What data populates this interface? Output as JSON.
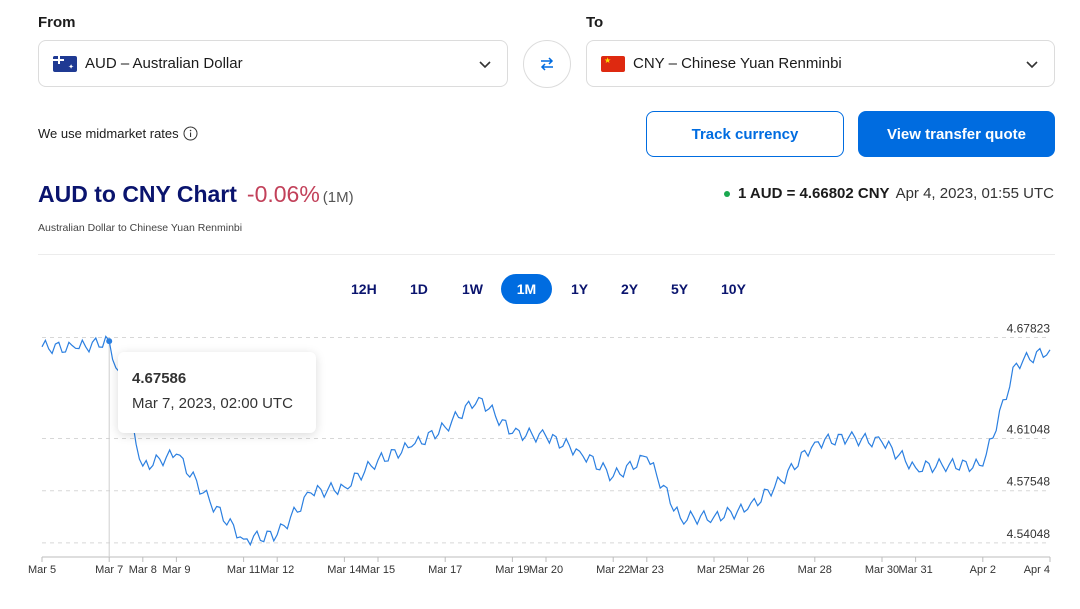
{
  "converter": {
    "from_label": "From",
    "to_label": "To",
    "from_currency": "AUD – Australian Dollar",
    "to_currency": "CNY – Chinese Yuan Renminbi",
    "from_flag": "australia-flag-icon",
    "to_flag": "china-flag-icon"
  },
  "note": "We use midmarket rates",
  "buttons": {
    "track": "Track currency",
    "quote": "View transfer quote"
  },
  "header": {
    "title": "AUD to CNY Chart",
    "change": "-0.06%",
    "period": "(1M)",
    "subtitle": "Australian Dollar to Chinese Yuan Renminbi",
    "rate": "1 AUD = 4.66802 CNY",
    "timestamp": "Apr 4, 2023, 01:55 UTC"
  },
  "tabs": [
    {
      "label": "12H",
      "active": false
    },
    {
      "label": "1D",
      "active": false
    },
    {
      "label": "1W",
      "active": false
    },
    {
      "label": "1M",
      "active": true
    },
    {
      "label": "1Y",
      "active": false
    },
    {
      "label": "2Y",
      "active": false
    },
    {
      "label": "5Y",
      "active": false
    },
    {
      "label": "10Y",
      "active": false
    }
  ],
  "tooltip": {
    "value": "4.67586",
    "date": "Mar 7, 2023, 02:00 UTC"
  },
  "colors": {
    "brand": "#006ce0",
    "title": "#0a146e",
    "negative": "#c2415a",
    "line": "#2b7fe0",
    "live_dot": "#1aa84f"
  },
  "chart_data": {
    "type": "line",
    "title": "AUD to CNY Chart",
    "y_ticks": [
      4.67823,
      4.61048,
      4.57548,
      4.54048
    ],
    "ylim": [
      4.531,
      4.69
    ],
    "x_labels": [
      "Mar 5",
      "Mar 7",
      "Mar 8",
      "Mar 9",
      "Mar 11",
      "Mar 12",
      "Mar 14",
      "Mar 15",
      "Mar 17",
      "Mar 19",
      "Mar 20",
      "Mar 22",
      "Mar 23",
      "Mar 25",
      "Mar 26",
      "Mar 28",
      "Mar 30",
      "Mar 31",
      "Apr 2",
      "Apr 4"
    ],
    "x": [
      "Mar 5",
      "Mar 6",
      "Mar 7",
      "Mar 8",
      "Mar 9",
      "Mar 10",
      "Mar 11",
      "Mar 12",
      "Mar 13",
      "Mar 14",
      "Mar 15",
      "Mar 16",
      "Mar 17",
      "Mar 18",
      "Mar 19",
      "Mar 20",
      "Mar 21",
      "Mar 22",
      "Mar 23",
      "Mar 24",
      "Mar 25",
      "Mar 26",
      "Mar 27",
      "Mar 28",
      "Mar 29",
      "Mar 30",
      "Mar 31",
      "Apr 1",
      "Apr 2",
      "Apr 3",
      "Apr 4"
    ],
    "values": [
      4.672,
      4.671,
      4.676,
      4.592,
      4.6,
      4.568,
      4.543,
      4.546,
      4.574,
      4.578,
      4.596,
      4.605,
      4.618,
      4.638,
      4.614,
      4.612,
      4.602,
      4.585,
      4.598,
      4.557,
      4.558,
      4.563,
      4.582,
      4.608,
      4.611,
      4.608,
      4.591,
      4.593,
      4.592,
      4.661,
      4.67
    ],
    "highlight": {
      "x": "Mar 7",
      "value": 4.67586
    },
    "grid": true,
    "legend": "none"
  }
}
